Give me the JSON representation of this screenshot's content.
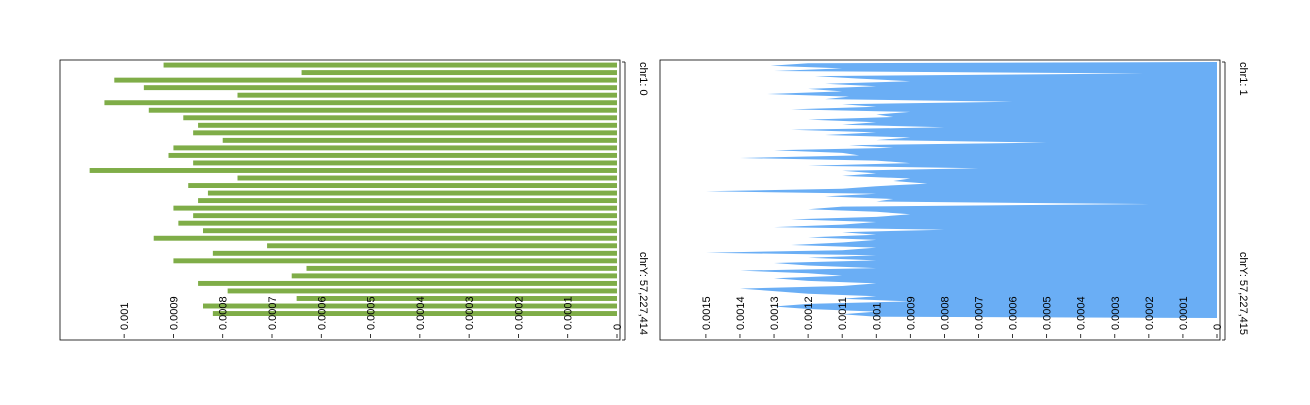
{
  "chart_data": [
    {
      "type": "bar",
      "orientation": "horizontal",
      "color": "#7fad48",
      "genome_axis": {
        "start_label": "chr1: 0",
        "end_label": "chrY: 57,227,414"
      },
      "value_axis": {
        "min": 0,
        "max": 0.00112,
        "ticks": [
          {
            "value": 0,
            "label": "0"
          },
          {
            "value": 0.0001,
            "label": "0.0001"
          },
          {
            "value": 0.0002,
            "label": "0.0002"
          },
          {
            "value": 0.0003,
            "label": "0.0003"
          },
          {
            "value": 0.0004,
            "label": "0.0004"
          },
          {
            "value": 0.0005,
            "label": "0.0005"
          },
          {
            "value": 0.0006,
            "label": "0.0006"
          },
          {
            "value": 0.0007,
            "label": "0.0007"
          },
          {
            "value": 0.0008,
            "label": "0.0008"
          },
          {
            "value": 0.0009,
            "label": "0.0009"
          },
          {
            "value": 0.001,
            "label": "0.001"
          }
        ]
      },
      "values": [
        0.00092,
        0.00064,
        0.00102,
        0.00096,
        0.00077,
        0.00104,
        0.00095,
        0.00088,
        0.00085,
        0.00086,
        0.0008,
        0.0009,
        0.00091,
        0.00086,
        0.00107,
        0.00077,
        0.00087,
        0.00083,
        0.00085,
        0.0009,
        0.00086,
        0.00089,
        0.00084,
        0.00094,
        0.00071,
        0.00082,
        0.0009,
        0.00063,
        0.00066,
        0.00085,
        0.00079,
        0.00065,
        0.00084,
        0.00082
      ]
    },
    {
      "type": "area",
      "orientation": "horizontal",
      "color": "#6aaef5",
      "genome_axis": {
        "start_label": "chr1: 1",
        "end_label": "chrY: 57,227,415"
      },
      "value_axis": {
        "min": 0,
        "max": 0.00162,
        "ticks": [
          {
            "value": 0,
            "label": "0"
          },
          {
            "value": 0.0001,
            "label": "0.0001"
          },
          {
            "value": 0.0002,
            "label": "0.0002"
          },
          {
            "value": 0.0003,
            "label": "0.0003"
          },
          {
            "value": 0.0004,
            "label": "0.0004"
          },
          {
            "value": 0.0005,
            "label": "0.0005"
          },
          {
            "value": 0.0006,
            "label": "0.0006"
          },
          {
            "value": 0.0007,
            "label": "0.0007"
          },
          {
            "value": 0.0008,
            "label": "0.0008"
          },
          {
            "value": 0.0009,
            "label": "0.0009"
          },
          {
            "value": 0.001,
            "label": "0.001"
          },
          {
            "value": 0.0011,
            "label": "0.0011"
          },
          {
            "value": 0.0012,
            "label": "0.0012"
          },
          {
            "value": 0.0013,
            "label": "0.0013"
          },
          {
            "value": 0.0014,
            "label": "0.0014"
          },
          {
            "value": 0.0015,
            "label": "0.0015"
          }
        ]
      },
      "values": [
        0.0012,
        0.00131,
        0.0011,
        0.0013,
        0.0002,
        0.00118,
        0.00105,
        0.0009,
        0.00115,
        0.001,
        0.0012,
        0.0011,
        0.00132,
        0.00108,
        0.00115,
        0.0006,
        0.0011,
        0.001,
        0.00125,
        0.0009,
        0.001,
        0.00095,
        0.0012,
        0.001,
        0.0011,
        0.0008,
        0.00125,
        0.001,
        0.00115,
        0.0009,
        0.001,
        0.0005,
        0.00108,
        0.00095,
        0.0013,
        0.0011,
        0.00105,
        0.0014,
        0.001,
        0.0009,
        0.0012,
        0.0007,
        0.0011,
        0.001,
        0.0011,
        0.0009,
        0.00095,
        0.00085,
        0.001,
        0.0011,
        0.0015,
        0.001,
        0.00115,
        0.00095,
        0.001,
        0.0002,
        0.0011,
        0.0012,
        0.001,
        0.0009,
        0.001,
        0.00125,
        0.001,
        0.0011,
        0.0013,
        0.0008,
        0.0011,
        0.001,
        0.0012,
        0.001,
        0.0011,
        0.00125,
        0.001,
        0.0011,
        0.0015,
        0.001,
        0.0012,
        0.001,
        0.0013,
        0.0012,
        0.001,
        0.0014,
        0.0012,
        0.0011,
        0.0013,
        0.0012,
        0.001,
        0.0011,
        0.0014,
        0.0013,
        0.0012,
        0.001,
        0.0011,
        0.0009,
        0.0012,
        0.0013,
        0.0012,
        0.001,
        0.0011,
        0.001
      ]
    }
  ]
}
